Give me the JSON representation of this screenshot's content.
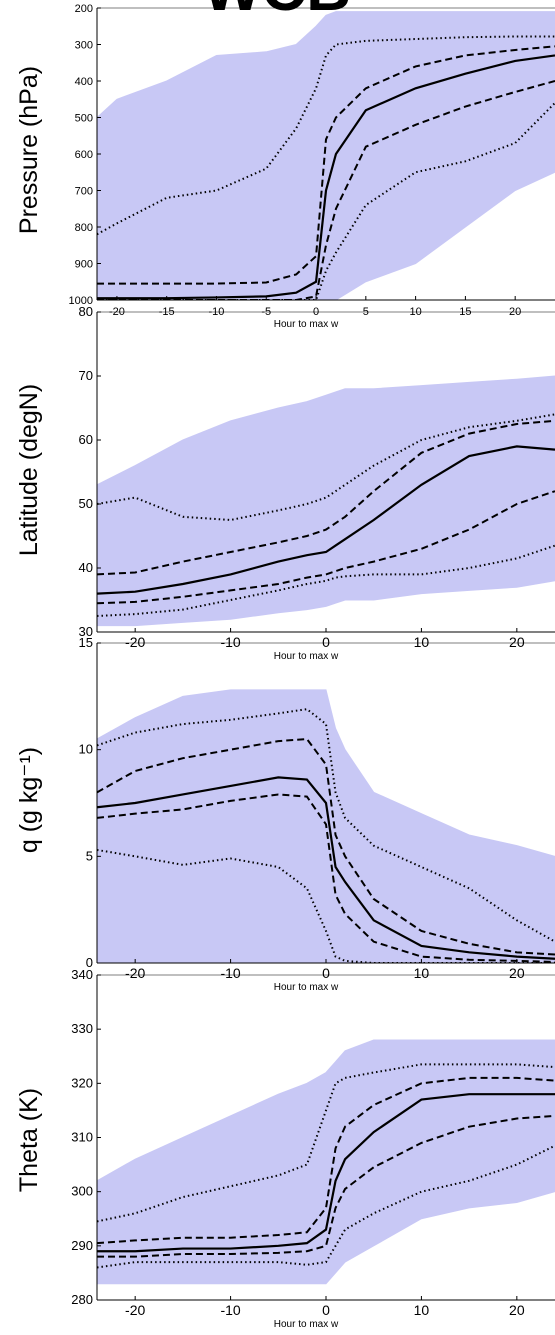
{
  "chart_data": [
    {
      "type": "line",
      "title": "WCB",
      "ylabel": "Pressure (hPa)",
      "xlabel": "Hour to max w",
      "x": [
        -22,
        -20,
        -15,
        -10,
        -5,
        -2,
        0,
        1,
        2,
        5,
        10,
        15,
        20,
        24
      ],
      "xlim": [
        -22,
        24
      ],
      "xticks": [
        -20,
        -15,
        -10,
        -5,
        0,
        5,
        10,
        15,
        20
      ],
      "ylim": [
        1000,
        200
      ],
      "yticks": [
        200,
        300,
        400,
        500,
        600,
        700,
        800,
        900,
        1000
      ],
      "series": [
        {
          "style": "band",
          "color": "#c8c8f5",
          "values": [
            500,
            450,
            400,
            330,
            320,
            300,
            250,
            220,
            210,
            210,
            210,
            210,
            210,
            210
          ],
          "lower": [
            1000,
            1000,
            1000,
            1000,
            1000,
            1000,
            1000,
            1000,
            1000,
            950,
            900,
            800,
            700,
            650
          ]
        },
        {
          "style": "dotted",
          "color": "#000000",
          "values": [
            820,
            790,
            720,
            700,
            640,
            530,
            420,
            330,
            300,
            290,
            285,
            280,
            278,
            278
          ]
        },
        {
          "style": "dotted",
          "color": "#000000",
          "values": [
            1000,
            1000,
            1000,
            1000,
            1000,
            1000,
            1000,
            920,
            870,
            740,
            650,
            620,
            570,
            460
          ]
        },
        {
          "style": "dashed",
          "color": "#000000",
          "values": [
            955,
            955,
            955,
            955,
            952,
            930,
            880,
            560,
            500,
            420,
            360,
            330,
            315,
            305
          ]
        },
        {
          "style": "dashed",
          "color": "#000000",
          "values": [
            1000,
            1000,
            1000,
            1000,
            1000,
            1000,
            990,
            850,
            750,
            580,
            520,
            470,
            430,
            400
          ]
        },
        {
          "style": "solid",
          "color": "#000000",
          "values": [
            995,
            995,
            995,
            993,
            990,
            980,
            950,
            700,
            600,
            480,
            420,
            380,
            345,
            330
          ]
        }
      ]
    },
    {
      "type": "line",
      "ylabel": "Latitude (degN)",
      "xlabel": "Hour to max w",
      "x": [
        -24,
        -20,
        -15,
        -10,
        -5,
        -2,
        0,
        1,
        2,
        5,
        10,
        15,
        20,
        24
      ],
      "xlim": [
        -24,
        24
      ],
      "xticks": [
        -20,
        -10,
        0,
        10,
        20
      ],
      "ylim": [
        30,
        80
      ],
      "yticks": [
        30,
        40,
        50,
        60,
        70,
        80
      ],
      "series": [
        {
          "style": "band",
          "color": "#c8c8f5",
          "values": [
            53,
            56,
            60,
            63,
            65,
            66,
            67,
            67.5,
            68,
            68,
            68.5,
            69,
            69.5,
            70
          ],
          "lower": [
            31,
            31,
            31.5,
            32,
            33,
            33.5,
            34,
            34.5,
            35,
            35,
            36,
            36.5,
            37,
            38
          ]
        },
        {
          "style": "dotted",
          "color": "#000000",
          "values": [
            50,
            51,
            48,
            47.5,
            49,
            50,
            51,
            52,
            53,
            56,
            60,
            62,
            63,
            64
          ]
        },
        {
          "style": "dotted",
          "color": "#000000",
          "values": [
            32.5,
            32.8,
            33.5,
            35,
            36.5,
            37.5,
            38,
            38.5,
            38.7,
            39,
            39,
            40,
            41.5,
            43.5
          ]
        },
        {
          "style": "dashed",
          "color": "#000000",
          "values": [
            39,
            39.3,
            41,
            42.5,
            44,
            45,
            46,
            47,
            48,
            52,
            58,
            61,
            62.5,
            63
          ]
        },
        {
          "style": "dashed",
          "color": "#000000",
          "values": [
            34.5,
            34.7,
            35.5,
            36.5,
            37.5,
            38.5,
            39,
            39.5,
            40,
            41,
            43,
            46,
            50,
            52
          ]
        },
        {
          "style": "solid",
          "color": "#000000",
          "values": [
            36,
            36.3,
            37.5,
            39,
            41,
            42,
            42.5,
            43.5,
            44.5,
            47.5,
            53,
            57.5,
            59,
            58.5
          ]
        }
      ]
    },
    {
      "type": "line",
      "ylabel": "q (g kg⁻¹)",
      "xlabel": "Hour to max w",
      "x": [
        -24,
        -20,
        -15,
        -10,
        -5,
        -2,
        0,
        1,
        2,
        5,
        10,
        15,
        20,
        24
      ],
      "xlim": [
        -24,
        24
      ],
      "xticks": [
        -20,
        -10,
        0,
        10,
        20
      ],
      "ylim": [
        0,
        15
      ],
      "yticks": [
        0,
        5,
        10,
        15
      ],
      "series": [
        {
          "style": "band",
          "color": "#c8c8f5",
          "values": [
            10.5,
            11.5,
            12.5,
            12.8,
            12.8,
            12.8,
            12.8,
            11,
            10,
            8,
            7,
            6,
            5.5,
            5
          ],
          "lower": [
            0,
            0,
            0,
            0,
            0,
            0,
            0,
            0,
            0,
            0,
            0,
            0,
            0,
            0
          ]
        },
        {
          "style": "dotted",
          "color": "#000000",
          "values": [
            10.2,
            10.8,
            11.2,
            11.4,
            11.7,
            11.9,
            11.2,
            8,
            6.8,
            5.5,
            4.5,
            3.5,
            2,
            1
          ]
        },
        {
          "style": "dotted",
          "color": "#000000",
          "values": [
            5.3,
            5,
            4.6,
            4.9,
            4.5,
            3.5,
            1.5,
            0.3,
            0.1,
            0,
            0,
            0,
            0,
            0
          ]
        },
        {
          "style": "dashed",
          "color": "#000000",
          "values": [
            8,
            9,
            9.6,
            10,
            10.4,
            10.5,
            9.3,
            6,
            5,
            3,
            1.5,
            0.9,
            0.5,
            0.4
          ]
        },
        {
          "style": "dashed",
          "color": "#000000",
          "values": [
            6.8,
            7,
            7.2,
            7.6,
            7.9,
            7.8,
            6.5,
            3.2,
            2.3,
            1,
            0.3,
            0.15,
            0.1,
            0.05
          ]
        },
        {
          "style": "solid",
          "color": "#000000",
          "values": [
            7.3,
            7.5,
            7.9,
            8.3,
            8.7,
            8.6,
            7.5,
            4.5,
            3.8,
            2,
            0.8,
            0.5,
            0.3,
            0.2
          ]
        }
      ]
    },
    {
      "type": "line",
      "ylabel": "Theta (K)",
      "xlabel": "Hour to max w",
      "x": [
        -24,
        -20,
        -15,
        -10,
        -5,
        -2,
        0,
        1,
        2,
        5,
        10,
        15,
        20,
        24
      ],
      "xlim": [
        -24,
        24
      ],
      "xticks": [
        -20,
        -10,
        0,
        10,
        20
      ],
      "ylim": [
        280,
        340
      ],
      "yticks": [
        280,
        290,
        300,
        310,
        320,
        330,
        340
      ],
      "series": [
        {
          "style": "band",
          "color": "#c8c8f5",
          "values": [
            302,
            306,
            310,
            314,
            318,
            320,
            322,
            324,
            326,
            328,
            328,
            328,
            328,
            328
          ],
          "lower": [
            283,
            283,
            283,
            283,
            283,
            283,
            283,
            285,
            287,
            290,
            295,
            297,
            298,
            300
          ]
        },
        {
          "style": "dotted",
          "color": "#000000",
          "values": [
            294.5,
            296,
            299,
            301,
            303,
            305,
            315,
            320,
            321,
            322,
            323.5,
            323.5,
            323.5,
            323
          ]
        },
        {
          "style": "dotted",
          "color": "#000000",
          "values": [
            286,
            287,
            287,
            287,
            287,
            286.5,
            287,
            290,
            293,
            296,
            300,
            302,
            305,
            308.5
          ]
        },
        {
          "style": "dashed",
          "color": "#000000",
          "values": [
            290.5,
            291,
            291.5,
            291.5,
            292,
            292.5,
            297,
            308,
            312,
            316,
            320,
            321,
            321,
            320.5
          ]
        },
        {
          "style": "dashed",
          "color": "#000000",
          "values": [
            288,
            288,
            288.5,
            288.5,
            288.7,
            289,
            290,
            297,
            300.5,
            304.5,
            309,
            312,
            313.5,
            314
          ]
        },
        {
          "style": "solid",
          "color": "#000000",
          "values": [
            289,
            289,
            289.5,
            289.5,
            290,
            290.5,
            293,
            302,
            306,
            311,
            317,
            318,
            318,
            318
          ]
        }
      ]
    }
  ]
}
